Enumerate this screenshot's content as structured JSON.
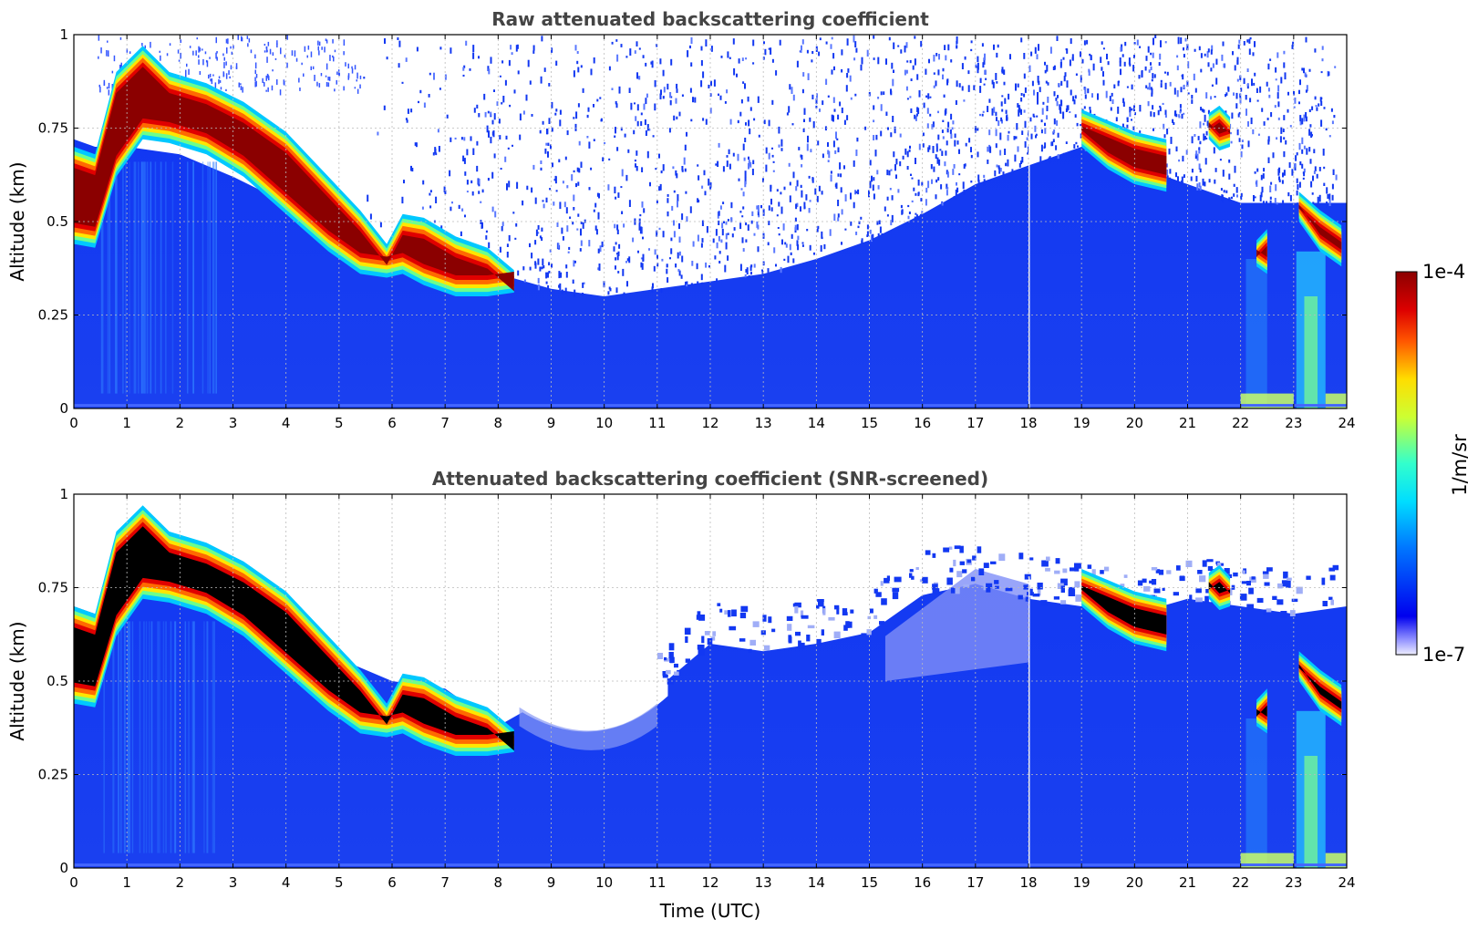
{
  "chart_data": [
    {
      "type": "heatmap",
      "title": "Raw attenuated backscattering coefficient",
      "xlabel": "",
      "ylabel": "Altitude (km)",
      "xlim": [
        0,
        24
      ],
      "ylim": [
        0,
        1
      ],
      "xticks": [
        "0",
        "1",
        "2",
        "3",
        "4",
        "5",
        "6",
        "7",
        "8",
        "9",
        "10",
        "11",
        "12",
        "13",
        "14",
        "15",
        "16",
        "17",
        "18",
        "19",
        "20",
        "21",
        "22",
        "23",
        "24"
      ],
      "yticks": [
        "0",
        "0.25",
        "0.5",
        "0.75",
        "1"
      ],
      "grid": true,
      "layer_top_km": {
        "x": [
          0.0,
          0.4,
          0.8,
          1.3,
          1.8,
          2.5,
          3.2,
          4.0,
          4.8,
          5.4,
          5.9,
          6.2,
          6.6,
          7.2,
          7.8,
          8.3
        ],
        "y": [
          0.7,
          0.68,
          0.9,
          0.97,
          0.9,
          0.87,
          0.82,
          0.74,
          0.62,
          0.53,
          0.44,
          0.52,
          0.51,
          0.46,
          0.43,
          0.37
        ]
      },
      "layer_base_km": {
        "x": [
          0.0,
          0.4,
          0.8,
          1.3,
          1.8,
          2.5,
          3.2,
          4.0,
          4.8,
          5.4,
          5.9,
          6.2,
          6.6,
          7.2,
          7.8,
          8.3
        ],
        "y": [
          0.44,
          0.43,
          0.62,
          0.72,
          0.71,
          0.68,
          0.62,
          0.52,
          0.42,
          0.36,
          0.35,
          0.36,
          0.33,
          0.3,
          0.3,
          0.31
        ]
      },
      "upper_clouds": [
        {
          "x": [
            19.0,
            19.5,
            20.0,
            20.6
          ],
          "top": [
            0.8,
            0.77,
            0.74,
            0.72
          ],
          "base": [
            0.7,
            0.64,
            0.6,
            0.58
          ]
        },
        {
          "x": [
            21.4,
            21.6,
            21.8
          ],
          "top": [
            0.79,
            0.81,
            0.78
          ],
          "base": [
            0.72,
            0.69,
            0.7
          ]
        },
        {
          "x": [
            23.1,
            23.5,
            23.9
          ],
          "top": [
            0.58,
            0.53,
            0.49
          ],
          "base": [
            0.5,
            0.42,
            0.38
          ]
        },
        {
          "x": [
            22.3,
            22.5
          ],
          "top": [
            0.45,
            0.48
          ],
          "base": [
            0.38,
            0.36
          ]
        }
      ]
    },
    {
      "type": "heatmap",
      "title": "Attenuated backscattering coefficient (SNR-screened)",
      "xlabel": "Time (UTC)",
      "ylabel": "Altitude (km)",
      "xlim": [
        0,
        24
      ],
      "ylim": [
        0,
        1
      ],
      "xticks": [
        "0",
        "1",
        "2",
        "3",
        "4",
        "5",
        "6",
        "7",
        "8",
        "9",
        "10",
        "11",
        "12",
        "13",
        "14",
        "15",
        "16",
        "17",
        "18",
        "19",
        "20",
        "21",
        "22",
        "23",
        "24"
      ],
      "yticks": [
        "0",
        "0.25",
        "0.5",
        "0.75",
        "1"
      ],
      "grid": true,
      "boundary_layer_top_km": {
        "x": [
          8.0,
          9.0,
          10.0,
          11.0,
          12.0,
          13.0,
          14.0,
          15.0,
          16.0,
          17.0,
          18.0,
          19.0
        ],
        "y": [
          0.4,
          0.48,
          0.47,
          0.5,
          0.62,
          0.6,
          0.62,
          0.65,
          0.75,
          0.78,
          0.74,
          0.72
        ]
      }
    }
  ],
  "colorbar": {
    "label": "1/m/sr",
    "max_label": "1e-4",
    "min_label": "1e-7",
    "scale": "log",
    "range": [
      1e-07,
      0.0001
    ],
    "colormap": "jet"
  },
  "colors": {
    "white_bg": "#ffffff",
    "background_blue": "#1238f2",
    "dark_red": "#8b0000",
    "black_saturated": "#000000",
    "grid": "#bbbbbb",
    "title": "#444444"
  }
}
